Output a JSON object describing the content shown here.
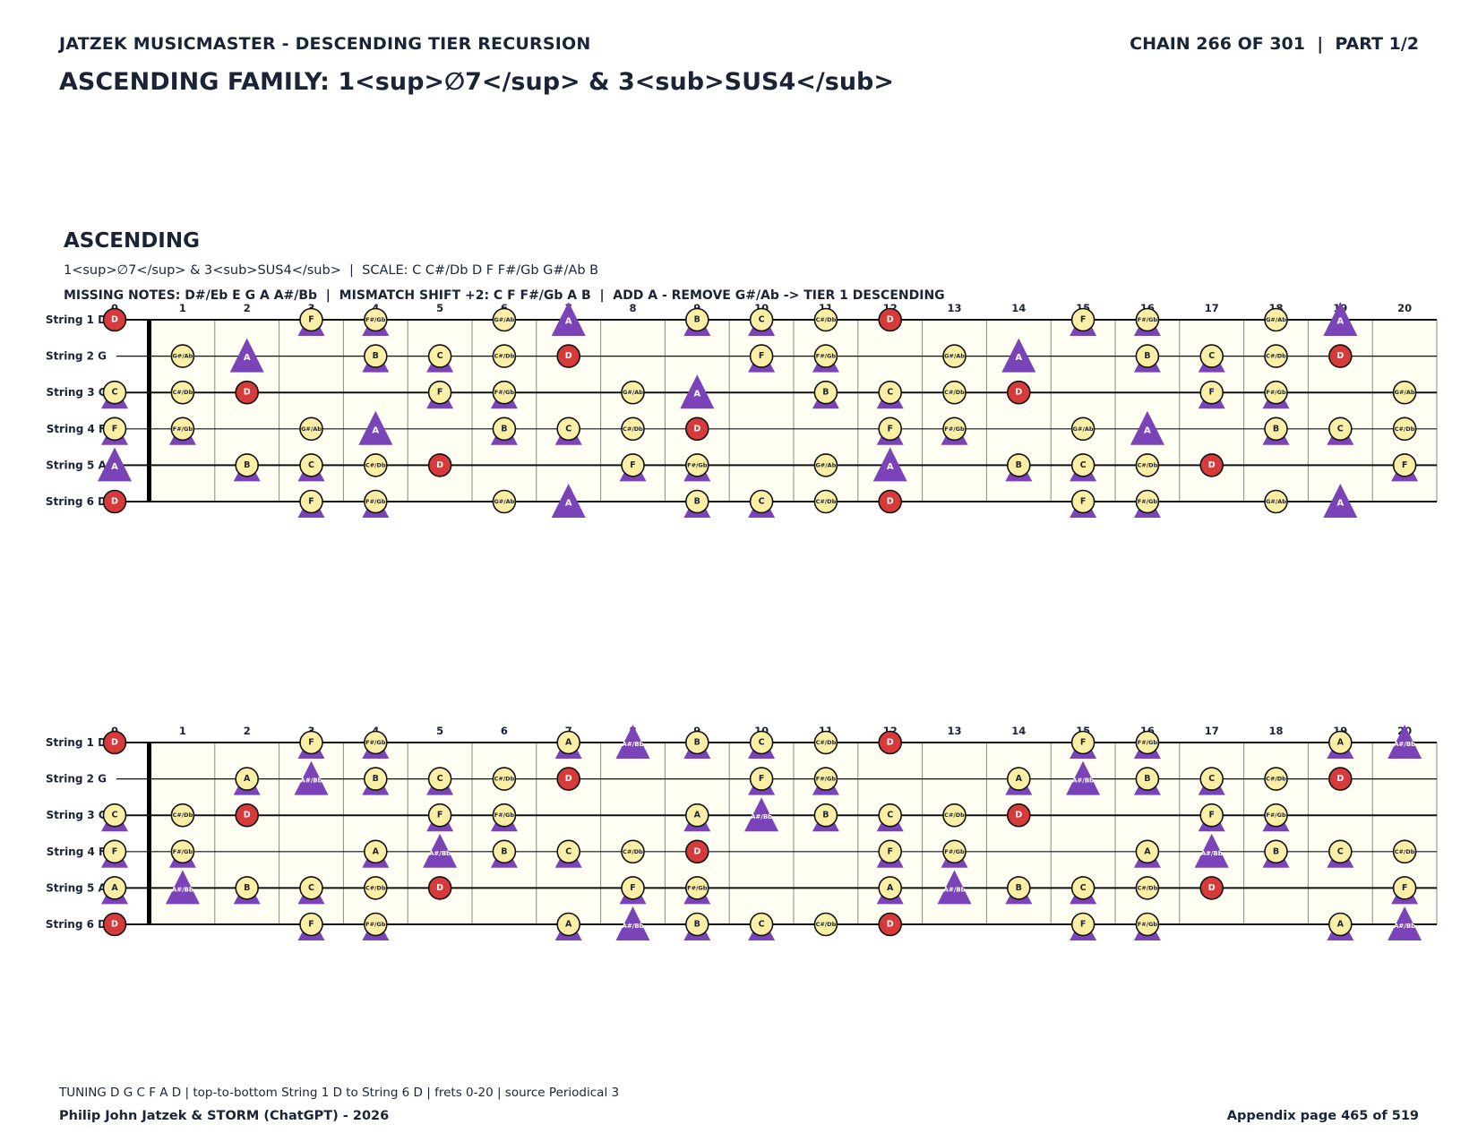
{
  "header": {
    "left": "JATZEK MUSICMASTER - DESCENDING TIER RECURSION",
    "right": "CHAIN 266 OF 301  |  PART 1/2"
  },
  "title": "ASCENDING FAMILY: 1<sup>∅7</sup> & 3<sub>SUS4</sub>",
  "section": {
    "title": "ASCENDING",
    "subtitle": "1<sup>∅7</sup> & 3<sub>SUS4</sub>  |  SCALE: C C#/Db D F F#/Gb G#/Ab B",
    "missing": "MISSING NOTES: D#/Eb E G A A#/Bb  |  MISMATCH SHIFT +2: C F F#/Gb A B  |  ADD A - REMOVE G#/Ab -> TIER 1 DESCENDING"
  },
  "fretboard": {
    "tuning": [
      "D",
      "G",
      "C",
      "F",
      "A",
      "D"
    ],
    "string_labels": [
      "String 1 D",
      "String 2 G",
      "String 3 C",
      "String 4 F",
      "String 5 A",
      "String 6 D"
    ],
    "fret_numbers": [
      "0",
      "1",
      "2",
      "3",
      "4",
      "5",
      "6",
      "7",
      "8",
      "9",
      "10",
      "11",
      "12",
      "13",
      "14",
      "15",
      "16",
      "17",
      "18",
      "19",
      "20"
    ],
    "chromatic": [
      "C",
      "C#/Db",
      "D",
      "D#/Eb",
      "E",
      "F",
      "F#/Gb",
      "G",
      "G#/Ab",
      "A",
      "A#/Bb",
      "B"
    ],
    "root": "D",
    "colors": {
      "root": "#d63a3a",
      "scale": "#fbefa6",
      "triangle": "#7a44b8",
      "outline": "#111111",
      "board": "#fffef2",
      "triangle_text": "#ffffff"
    }
  },
  "diagrams": [
    {
      "name": "ascending-scale",
      "circles": [
        "C",
        "C#/Db",
        "D",
        "F",
        "F#/Gb",
        "G#/Ab",
        "B"
      ],
      "triangles": [
        "C",
        "F",
        "F#/Gb",
        "A",
        "B"
      ]
    },
    {
      "name": "tier-1-descending",
      "circles": [
        "C",
        "C#/Db",
        "D",
        "F",
        "F#/Gb",
        "A",
        "B"
      ],
      "triangles": [
        "C",
        "F",
        "F#/Gb",
        "A",
        "A#/Bb",
        "B"
      ]
    }
  ],
  "footer": {
    "tuning_note": "TUNING D G C F A D | top-to-bottom String 1 D to String 6 D | frets 0-20 | source Periodical 3",
    "author": "Philip John Jatzek & STORM (ChatGPT) - 2026",
    "page": "Appendix page 465 of 519"
  }
}
